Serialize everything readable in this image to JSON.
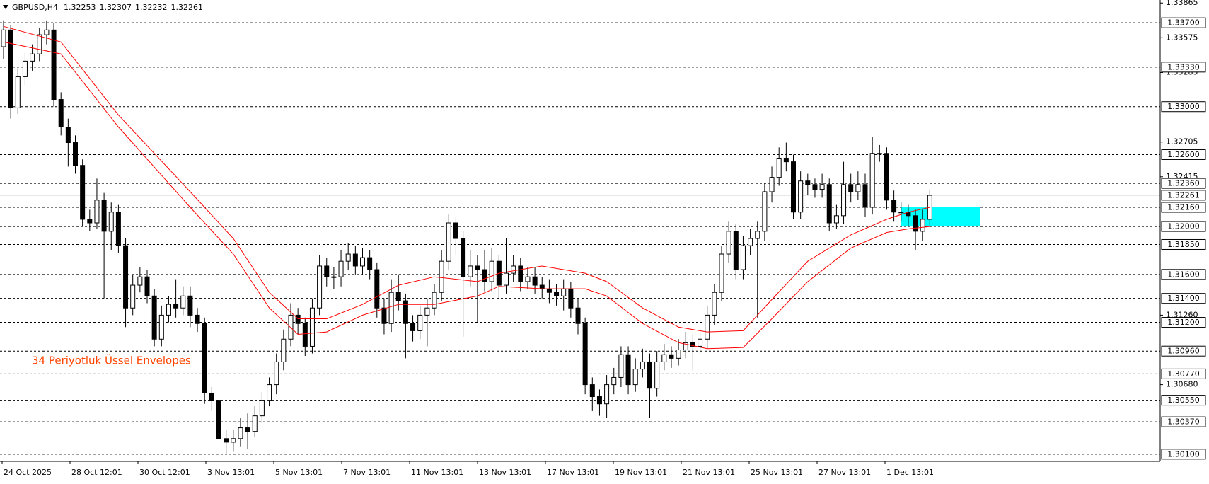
{
  "chart_data": {
    "type": "candlestick",
    "symbol": "GBPUSD,H4",
    "quote": [
      1.32253,
      1.32307,
      1.32232,
      1.32261
    ],
    "annotation": "34  Periyotluk Üssel Envelopes",
    "annotation_color": "#ff4500",
    "ylim": [
      1.3004,
      1.3389
    ],
    "yticks": [
      {
        "value": 1.33865,
        "label": "1.33865"
      },
      {
        "value": 1.33575,
        "label": "1.33575"
      },
      {
        "value": 1.33285,
        "label": "1.33285"
      },
      {
        "value": 1.32705,
        "label": "1.32705"
      },
      {
        "value": 1.32415,
        "label": "1.32415"
      },
      {
        "value": 1.3126,
        "label": "1.31260"
      },
      {
        "value": 1.3068,
        "label": "1.30680"
      }
    ],
    "levels": [
      {
        "value": 1.337,
        "label": "1.33700"
      },
      {
        "value": 1.3333,
        "label": "1.33330"
      },
      {
        "value": 1.33,
        "label": "1.33000"
      },
      {
        "value": 1.326,
        "label": "1.32600"
      },
      {
        "value": 1.3236,
        "label": "1.32360"
      },
      {
        "value": 1.3216,
        "label": "1.32160"
      },
      {
        "value": 1.32,
        "label": "1.32000"
      },
      {
        "value": 1.3185,
        "label": "1.31850"
      },
      {
        "value": 1.316,
        "label": "1.31600"
      },
      {
        "value": 1.314,
        "label": "1.31400"
      },
      {
        "value": 1.312,
        "label": "1.31200"
      },
      {
        "value": 1.3096,
        "label": "1.30960"
      },
      {
        "value": 1.3077,
        "label": "1.30770"
      },
      {
        "value": 1.3055,
        "label": "1.30550"
      },
      {
        "value": 1.3037,
        "label": "1.30370"
      },
      {
        "value": 1.301,
        "label": "1.30100"
      }
    ],
    "current_price": 1.32261,
    "current_price_color": "#c0c0c0",
    "zone": {
      "x": [
        125,
        136
      ],
      "y": [
        1.3216,
        1.32
      ],
      "color": "#00ffff"
    },
    "x_labels": [
      "24 Oct 2025",
      "28 Oct 12:01",
      "30 Oct 12:01",
      "3 Nov 13:01",
      "5 Nov 13:01",
      "7 Nov 13:01",
      "11 Nov 13:01",
      "13 Nov 13:01",
      "17 Nov 13:01",
      "19 Nov 13:01",
      "21 Nov 13:01",
      "25 Nov 13:01",
      "27 Nov 13:01",
      "1 Dec 13:01"
    ],
    "up_color": "#ffffff",
    "down_color": "#000000",
    "candles": [
      [
        1.335,
        1.3372,
        1.334,
        1.3364
      ],
      [
        1.3364,
        1.3368,
        1.329,
        1.3299
      ],
      [
        1.3299,
        1.3332,
        1.3294,
        1.3325
      ],
      [
        1.3325,
        1.3345,
        1.3318,
        1.3338
      ],
      [
        1.3338,
        1.3352,
        1.333,
        1.3344
      ],
      [
        1.3344,
        1.3366,
        1.3338,
        1.336
      ],
      [
        1.336,
        1.3372,
        1.3352,
        1.3364
      ],
      [
        1.3364,
        1.337,
        1.33,
        1.3306
      ],
      [
        1.3306,
        1.3312,
        1.3276,
        1.3283
      ],
      [
        1.3283,
        1.329,
        1.325,
        1.327
      ],
      [
        1.327,
        1.3276,
        1.3244,
        1.3251
      ],
      [
        1.3251,
        1.3256,
        1.32,
        1.3206
      ],
      [
        1.3206,
        1.3214,
        1.3196,
        1.3203
      ],
      [
        1.3203,
        1.324,
        1.3198,
        1.3222
      ],
      [
        1.3222,
        1.3228,
        1.314,
        1.3196
      ],
      [
        1.3196,
        1.322,
        1.318,
        1.3212
      ],
      [
        1.3212,
        1.3218,
        1.3178,
        1.3184
      ],
      [
        1.3184,
        1.319,
        1.3116,
        1.3132
      ],
      [
        1.3132,
        1.316,
        1.3126,
        1.3151
      ],
      [
        1.3151,
        1.3166,
        1.3145,
        1.3158
      ],
      [
        1.3158,
        1.3164,
        1.3136,
        1.3142
      ],
      [
        1.3142,
        1.3148,
        1.31,
        1.3106
      ],
      [
        1.3106,
        1.3134,
        1.31,
        1.3126
      ],
      [
        1.3126,
        1.3142,
        1.312,
        1.3135
      ],
      [
        1.3135,
        1.3156,
        1.3124,
        1.3132
      ],
      [
        1.3132,
        1.315,
        1.3126,
        1.3142
      ],
      [
        1.3142,
        1.315,
        1.3116,
        1.3126
      ],
      [
        1.3126,
        1.3132,
        1.3112,
        1.3119
      ],
      [
        1.3119,
        1.3124,
        1.3052,
        1.3061
      ],
      [
        1.3061,
        1.3066,
        1.3046,
        1.3055
      ],
      [
        1.3055,
        1.306,
        1.3014,
        1.3023
      ],
      [
        1.3023,
        1.303,
        1.301,
        1.302
      ],
      [
        1.302,
        1.303,
        1.3012,
        1.3023
      ],
      [
        1.3023,
        1.304,
        1.3016,
        1.3032
      ],
      [
        1.3032,
        1.3044,
        1.3014,
        1.3029
      ],
      [
        1.3029,
        1.305,
        1.3024,
        1.3042
      ],
      [
        1.3042,
        1.3062,
        1.3036,
        1.3055
      ],
      [
        1.3055,
        1.3074,
        1.305,
        1.3068
      ],
      [
        1.3068,
        1.3094,
        1.306,
        1.3087
      ],
      [
        1.3087,
        1.3114,
        1.308,
        1.3106
      ],
      [
        1.3106,
        1.3136,
        1.31,
        1.3126
      ],
      [
        1.3126,
        1.3132,
        1.311,
        1.3119
      ],
      [
        1.3119,
        1.3124,
        1.3092,
        1.31
      ],
      [
        1.31,
        1.314,
        1.3094,
        1.3132
      ],
      [
        1.3132,
        1.3176,
        1.3126,
        1.3167
      ],
      [
        1.3167,
        1.3174,
        1.315,
        1.3158
      ],
      [
        1.3158,
        1.3166,
        1.3148,
        1.3158
      ],
      [
        1.3158,
        1.318,
        1.315,
        1.3171
      ],
      [
        1.3171,
        1.3186,
        1.3164,
        1.3177
      ],
      [
        1.3177,
        1.3184,
        1.316,
        1.3167
      ],
      [
        1.3167,
        1.3182,
        1.316,
        1.3174
      ],
      [
        1.3174,
        1.318,
        1.3156,
        1.3164
      ],
      [
        1.3164,
        1.317,
        1.3124,
        1.3132
      ],
      [
        1.3132,
        1.314,
        1.311,
        1.3119
      ],
      [
        1.3119,
        1.3156,
        1.3112,
        1.3145
      ],
      [
        1.3145,
        1.316,
        1.313,
        1.3138
      ],
      [
        1.3138,
        1.3144,
        1.309,
        1.3119
      ],
      [
        1.3119,
        1.3126,
        1.3104,
        1.3113
      ],
      [
        1.3113,
        1.3134,
        1.3106,
        1.3126
      ],
      [
        1.3126,
        1.314,
        1.31,
        1.3132
      ],
      [
        1.3132,
        1.3152,
        1.3126,
        1.3145
      ],
      [
        1.3145,
        1.318,
        1.3138,
        1.3171
      ],
      [
        1.3171,
        1.321,
        1.3164,
        1.3203
      ],
      [
        1.3203,
        1.3208,
        1.3176,
        1.319
      ],
      [
        1.319,
        1.3196,
        1.3108,
        1.3158
      ],
      [
        1.3158,
        1.318,
        1.315,
        1.3167
      ],
      [
        1.3167,
        1.3176,
        1.312,
        1.3164
      ],
      [
        1.3164,
        1.318,
        1.3146,
        1.3154
      ],
      [
        1.3154,
        1.3182,
        1.3146,
        1.3171
      ],
      [
        1.3171,
        1.3176,
        1.314,
        1.3151
      ],
      [
        1.3151,
        1.319,
        1.3144,
        1.3161
      ],
      [
        1.3161,
        1.3176,
        1.3154,
        1.3167
      ],
      [
        1.3167,
        1.3174,
        1.3146,
        1.3154
      ],
      [
        1.3154,
        1.3166,
        1.3148,
        1.3158
      ],
      [
        1.3158,
        1.3166,
        1.3144,
        1.3151
      ],
      [
        1.3151,
        1.3158,
        1.314,
        1.3148
      ],
      [
        1.3148,
        1.3156,
        1.3136,
        1.3145
      ],
      [
        1.3145,
        1.3152,
        1.3134,
        1.3142
      ],
      [
        1.3142,
        1.3156,
        1.313,
        1.3148
      ],
      [
        1.3148,
        1.3154,
        1.3124,
        1.3132
      ],
      [
        1.3132,
        1.314,
        1.311,
        1.3119
      ],
      [
        1.3119,
        1.3124,
        1.306,
        1.3068
      ],
      [
        1.3068,
        1.3074,
        1.3046,
        1.3058
      ],
      [
        1.3058,
        1.3064,
        1.3042,
        1.3052
      ],
      [
        1.3052,
        1.3076,
        1.304,
        1.3068
      ],
      [
        1.3068,
        1.3082,
        1.306,
        1.3074
      ],
      [
        1.3074,
        1.31,
        1.3066,
        1.3093
      ],
      [
        1.3093,
        1.31,
        1.306,
        1.3068
      ],
      [
        1.3068,
        1.309,
        1.3062,
        1.3081
      ],
      [
        1.3081,
        1.3098,
        1.3074,
        1.3087
      ],
      [
        1.3087,
        1.3094,
        1.304,
        1.3065
      ],
      [
        1.3065,
        1.3096,
        1.3058,
        1.3087
      ],
      [
        1.3087,
        1.3102,
        1.308,
        1.3093
      ],
      [
        1.3093,
        1.31,
        1.3082,
        1.309
      ],
      [
        1.309,
        1.3106,
        1.3084,
        1.3097
      ],
      [
        1.3097,
        1.3112,
        1.309,
        1.3103
      ],
      [
        1.3103,
        1.311,
        1.308,
        1.31
      ],
      [
        1.31,
        1.3114,
        1.3094,
        1.3106
      ],
      [
        1.3106,
        1.3134,
        1.3098,
        1.3126
      ],
      [
        1.3126,
        1.3152,
        1.3118,
        1.3145
      ],
      [
        1.3145,
        1.3184,
        1.3138,
        1.3177
      ],
      [
        1.3177,
        1.3204,
        1.317,
        1.3196
      ],
      [
        1.3196,
        1.3202,
        1.3156,
        1.3164
      ],
      [
        1.3164,
        1.3192,
        1.3156,
        1.3184
      ],
      [
        1.3184,
        1.3198,
        1.3176,
        1.319
      ],
      [
        1.319,
        1.3204,
        1.3124,
        1.3196
      ],
      [
        1.3196,
        1.3236,
        1.3188,
        1.3229
      ],
      [
        1.3229,
        1.325,
        1.322,
        1.3241
      ],
      [
        1.3241,
        1.3266,
        1.3234,
        1.3257
      ],
      [
        1.3257,
        1.327,
        1.3246,
        1.3254
      ],
      [
        1.3254,
        1.326,
        1.3206,
        1.3212
      ],
      [
        1.3212,
        1.3246,
        1.3206,
        1.3238
      ],
      [
        1.3238,
        1.3244,
        1.3226,
        1.3235
      ],
      [
        1.3235,
        1.324,
        1.3224,
        1.3231
      ],
      [
        1.3231,
        1.3244,
        1.3224,
        1.3235
      ],
      [
        1.3235,
        1.324,
        1.3196,
        1.3203
      ],
      [
        1.3203,
        1.3218,
        1.3198,
        1.3209
      ],
      [
        1.3209,
        1.3254,
        1.3202,
        1.3235
      ],
      [
        1.3235,
        1.3244,
        1.322,
        1.3229
      ],
      [
        1.3229,
        1.3246,
        1.3222,
        1.3235
      ],
      [
        1.3235,
        1.3244,
        1.3208,
        1.3216
      ],
      [
        1.3216,
        1.3275,
        1.321,
        1.3261
      ],
      [
        1.3261,
        1.3268,
        1.3254,
        1.3261
      ],
      [
        1.3261,
        1.3266,
        1.3214,
        1.3222
      ],
      [
        1.3222,
        1.323,
        1.3204,
        1.3212
      ],
      [
        1.3212,
        1.322,
        1.3204,
        1.3212
      ],
      [
        1.3212,
        1.3218,
        1.32,
        1.3209
      ],
      [
        1.3209,
        1.3214,
        1.318,
        1.3196
      ],
      [
        1.3196,
        1.3214,
        1.3188,
        1.3206
      ],
      [
        1.3206,
        1.3231,
        1.32,
        1.3226
      ]
    ],
    "envelopes": [
      {
        "color": "#ff0000",
        "x": [
          0,
          8,
          16,
          26,
          32,
          37,
          41,
          45,
          50,
          55,
          60,
          66,
          69,
          75,
          81,
          84,
          89,
          94,
          98,
          103,
          107,
          112,
          118,
          123,
          126,
          129
        ],
        "values": [
          1.3367,
          1.3354,
          1.3293,
          1.3229,
          1.319,
          1.3145,
          1.3123,
          1.3123,
          1.3135,
          1.3151,
          1.3158,
          1.3154,
          1.3161,
          1.3167,
          1.3161,
          1.3154,
          1.3132,
          1.3116,
          1.3112,
          1.3113,
          1.3139,
          1.3171,
          1.3193,
          1.3206,
          1.3212,
          1.3216
        ]
      },
      {
        "color": "#ff0000",
        "x": [
          0,
          8,
          16,
          26,
          32,
          37,
          41,
          45,
          50,
          55,
          60,
          66,
          69,
          75,
          81,
          84,
          89,
          94,
          98,
          103,
          107,
          112,
          118,
          123,
          126,
          129
        ],
        "values": [
          1.3354,
          1.3344,
          1.3283,
          1.3216,
          1.3177,
          1.3132,
          1.311,
          1.3112,
          1.3126,
          1.3135,
          1.3135,
          1.3142,
          1.315,
          1.3148,
          1.3148,
          1.3142,
          1.3119,
          1.3103,
          1.3098,
          1.3099,
          1.3123,
          1.3154,
          1.3182,
          1.3195,
          1.3198,
          1.32
        ]
      }
    ]
  }
}
